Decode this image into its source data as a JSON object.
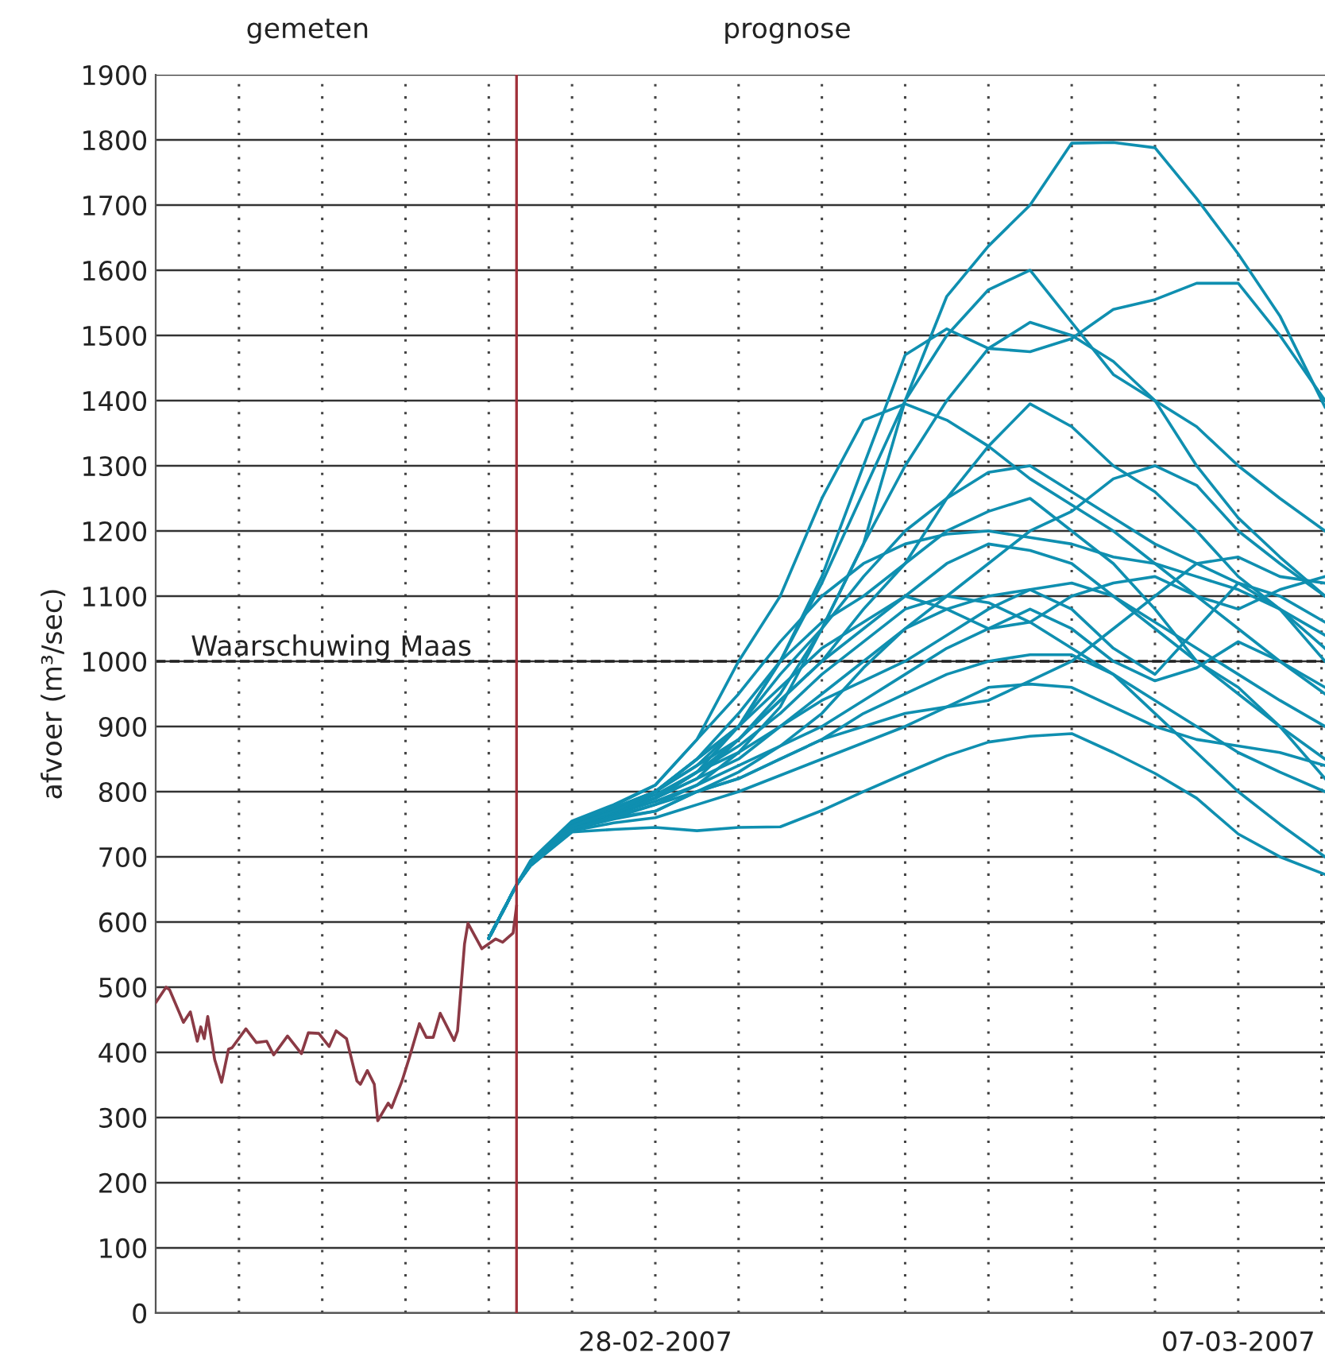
{
  "chart_data": {
    "type": "line",
    "ylabel": "afvoer (m³/sec)",
    "annotations": [
      "gemeten",
      "prognose"
    ],
    "xlim": [
      "2007-02-22T00:00",
      "2007-03-08T01:00"
    ],
    "xticks": [
      {
        "value": "2007-02-23",
        "label": null
      },
      {
        "value": "2007-02-24",
        "label": null
      },
      {
        "value": "2007-02-25",
        "label": null
      },
      {
        "value": "2007-02-26",
        "label": null
      },
      {
        "value": "2007-02-27",
        "label": null
      },
      {
        "value": "2007-02-28",
        "label": "28-02-2007"
      },
      {
        "value": "2007-03-01",
        "label": null
      },
      {
        "value": "2007-03-02",
        "label": null
      },
      {
        "value": "2007-03-03",
        "label": null
      },
      {
        "value": "2007-03-04",
        "label": null
      },
      {
        "value": "2007-03-05",
        "label": null
      },
      {
        "value": "2007-03-06",
        "label": null
      },
      {
        "value": "2007-03-07",
        "label": "07-03-2007"
      },
      {
        "value": "2007-03-08",
        "label": null
      }
    ],
    "ylim": [
      0,
      1900
    ],
    "yticks": [
      0,
      100,
      200,
      300,
      400,
      500,
      600,
      700,
      800,
      900,
      1000,
      1100,
      1200,
      1300,
      1400,
      1500,
      1600,
      1700,
      1800,
      1900
    ],
    "grid": true,
    "marker": "none",
    "line_style": "solid",
    "ref_lines": [
      {
        "axis": "y",
        "value": 1000,
        "label": "Waarschuwing Maas",
        "color": "#222222",
        "line_style": "dashed"
      },
      {
        "axis": "x",
        "value": "2007-02-26T08:00",
        "label": null,
        "color": "#a0303a",
        "line_style": "solid"
      }
    ],
    "series": [
      {
        "color": "#8b3a45",
        "x": [
          "2007-02-22T00:00",
          "2007-02-22T03:00",
          "2007-02-22T04:00",
          "2007-02-22T08:00",
          "2007-02-22T10:00",
          "2007-02-22T12:00",
          "2007-02-22T13:00",
          "2007-02-22T14:00",
          "2007-02-22T15:00",
          "2007-02-22T17:00",
          "2007-02-22T19:00",
          "2007-02-22T21:00",
          "2007-02-22T22:00",
          "2007-02-23T02:00",
          "2007-02-23T05:00",
          "2007-02-23T08:00",
          "2007-02-23T10:00",
          "2007-02-23T14:00",
          "2007-02-23T18:00",
          "2007-02-23T20:00",
          "2007-02-23T23:00",
          "2007-02-24T02:00",
          "2007-02-24T04:00",
          "2007-02-24T07:00",
          "2007-02-24T10:00",
          "2007-02-24T11:00",
          "2007-02-24T13:00",
          "2007-02-24T15:00",
          "2007-02-24T16:00",
          "2007-02-24T19:00",
          "2007-02-24T20:00",
          "2007-02-24T23:00",
          "2007-02-25T01:00",
          "2007-02-25T04:00",
          "2007-02-25T06:00",
          "2007-02-25T08:00",
          "2007-02-25T10:00",
          "2007-02-25T14:00",
          "2007-02-25T15:00",
          "2007-02-25T17:00",
          "2007-02-25T18:00",
          "2007-02-25T22:00",
          "2007-02-26T02:00",
          "2007-02-26T04:00",
          "2007-02-26T07:00",
          "2007-02-26T08:00"
        ],
        "values": [
          476,
          500,
          496,
          446,
          462,
          417,
          439,
          421,
          455,
          389,
          354,
          405,
          407,
          436,
          415,
          417,
          396,
          425,
          398,
          430,
          429,
          409,
          433,
          421,
          356,
          351,
          372,
          351,
          295,
          322,
          315,
          356,
          390,
          444,
          423,
          423,
          460,
          418,
          433,
          566,
          598,
          559,
          574,
          569,
          583,
          624
        ]
      },
      {
        "color": "#0f8fb0",
        "values": [
          575,
          657,
          690,
          750,
          770,
          790,
          820,
          880,
          950,
          1050,
          1180,
          1400,
          1560,
          1637,
          1700,
          1795,
          1796,
          1788,
          1710,
          1625,
          1530,
          1390
        ]
      },
      {
        "color": "#0f8fb0",
        "values": [
          575,
          657,
          692,
          752,
          775,
          800,
          840,
          900,
          1000,
          1120,
          1260,
          1400,
          1500,
          1570,
          1600,
          1520,
          1440,
          1400,
          1300,
          1220,
          1160,
          1100
        ]
      },
      {
        "color": "#0f8fb0",
        "values": [
          575,
          657,
          690,
          748,
          768,
          790,
          830,
          900,
          1000,
          1130,
          1300,
          1470,
          1510,
          1480,
          1475,
          1495,
          1540,
          1555,
          1580,
          1580,
          1500,
          1400
        ]
      },
      {
        "color": "#0f8fb0",
        "values": [
          575,
          657,
          688,
          745,
          765,
          785,
          810,
          860,
          930,
          1050,
          1180,
          1300,
          1400,
          1480,
          1520,
          1500,
          1460,
          1400,
          1360,
          1300,
          1250,
          1200
        ]
      },
      {
        "color": "#0f8fb0",
        "values": [
          575,
          657,
          694,
          755,
          780,
          810,
          880,
          1000,
          1100,
          1250,
          1370,
          1395,
          1370,
          1330,
          1280,
          1240,
          1200,
          1150,
          1100,
          1050,
          1000,
          950
        ]
      },
      {
        "color": "#0f8fb0",
        "values": [
          575,
          657,
          690,
          748,
          770,
          800,
          850,
          920,
          1000,
          1060,
          1100,
          1150,
          1250,
          1330,
          1395,
          1360,
          1300,
          1260,
          1200,
          1130,
          1080,
          1020
        ]
      },
      {
        "color": "#0f8fb0",
        "values": [
          575,
          657,
          686,
          738,
          742,
          745,
          740,
          745,
          746,
          771,
          800,
          828,
          855,
          876,
          885,
          889,
          860,
          828,
          790,
          735,
          700,
          673
        ]
      },
      {
        "color": "#0f8fb0",
        "values": [
          575,
          657,
          688,
          742,
          760,
          780,
          800,
          820,
          850,
          880,
          920,
          950,
          980,
          1000,
          1010,
          1010,
          980,
          920,
          860,
          800,
          750,
          700
        ]
      },
      {
        "color": "#0f8fb0",
        "values": [
          575,
          657,
          689,
          745,
          765,
          790,
          820,
          850,
          900,
          950,
          1000,
          1050,
          1100,
          1150,
          1200,
          1230,
          1280,
          1300,
          1270,
          1200,
          1150,
          1100
        ]
      },
      {
        "color": "#0f8fb0",
        "values": [
          575,
          657,
          690,
          750,
          772,
          800,
          850,
          900,
          980,
          1050,
          1130,
          1200,
          1250,
          1290,
          1300,
          1260,
          1220,
          1180,
          1150,
          1120,
          1100,
          1060
        ]
      },
      {
        "color": "#0f8fb0",
        "values": [
          575,
          657,
          689,
          746,
          768,
          790,
          830,
          880,
          940,
          1000,
          1080,
          1150,
          1200,
          1230,
          1250,
          1200,
          1150,
          1080,
          1000,
          950,
          900,
          850
        ]
      },
      {
        "color": "#0f8fb0",
        "values": [
          575,
          657,
          687,
          742,
          758,
          770,
          800,
          830,
          870,
          920,
          990,
          1050,
          1080,
          1100,
          1110,
          1120,
          1100,
          1060,
          1020,
          980,
          940,
          900
        ]
      },
      {
        "color": "#0f8fb0",
        "values": [
          575,
          657,
          688,
          744,
          762,
          780,
          810,
          840,
          870,
          900,
          940,
          980,
          1020,
          1050,
          1080,
          1050,
          1000,
          970,
          990,
          1030,
          1000,
          960
        ]
      },
      {
        "color": "#0f8fb0",
        "values": [
          575,
          657,
          690,
          750,
          775,
          800,
          840,
          880,
          940,
          1000,
          1050,
          1100,
          1150,
          1180,
          1170,
          1150,
          1100,
          1050,
          1000,
          960,
          900,
          820
        ]
      },
      {
        "color": "#0f8fb0",
        "values": [
          575,
          657,
          686,
          740,
          752,
          760,
          780,
          800,
          825,
          850,
          875,
          900,
          930,
          960,
          965,
          960,
          930,
          900,
          880,
          870,
          860,
          840
        ]
      },
      {
        "color": "#0f8fb0",
        "values": [
          575,
          657,
          689,
          746,
          768,
          790,
          830,
          860,
          900,
          940,
          970,
          1000,
          1040,
          1080,
          1110,
          1080,
          1020,
          980,
          1050,
          1120,
          1080,
          1000
        ]
      },
      {
        "color": "#0f8fb0",
        "values": [
          575,
          657,
          691,
          752,
          778,
          810,
          880,
          950,
          1030,
          1100,
          1150,
          1180,
          1195,
          1200,
          1190,
          1180,
          1160,
          1150,
          1130,
          1110,
          1080,
          1040
        ]
      },
      {
        "color": "#0f8fb0",
        "values": [
          575,
          657,
          687,
          743,
          760,
          770,
          800,
          820,
          850,
          880,
          900,
          920,
          930,
          940,
          970,
          1000,
          1050,
          1100,
          1150,
          1160,
          1130,
          1120
        ]
      },
      {
        "color": "#0f8fb0",
        "values": [
          575,
          657,
          690,
          748,
          770,
          795,
          830,
          870,
          920,
          980,
          1030,
          1080,
          1100,
          1090,
          1060,
          1020,
          980,
          940,
          900,
          860,
          830,
          800
        ]
      },
      {
        "color": "#0f8fb0",
        "values": [
          575,
          657,
          689,
          747,
          770,
          800,
          850,
          900,
          960,
          1020,
          1060,
          1100,
          1080,
          1050,
          1060,
          1100,
          1120,
          1130,
          1100,
          1080,
          1110,
          1130
        ]
      }
    ],
    "x": [
      "2007-02-26T00:00",
      "2007-02-26T08:00",
      "2007-02-26T12:00",
      "2007-02-27T00:00",
      "2007-02-27T12:00",
      "2007-02-28T00:00",
      "2007-02-28T12:00",
      "2007-03-01T00:00",
      "2007-03-01T12:00",
      "2007-03-02T00:00",
      "2007-03-02T12:00",
      "2007-03-03T00:00",
      "2007-03-03T12:00",
      "2007-03-04T00:00",
      "2007-03-04T12:00",
      "2007-03-05T00:00",
      "2007-03-05T12:00",
      "2007-03-06T00:00",
      "2007-03-06T12:00",
      "2007-03-07T00:00",
      "2007-03-07T12:00",
      "2007-03-08T01:00"
    ]
  }
}
